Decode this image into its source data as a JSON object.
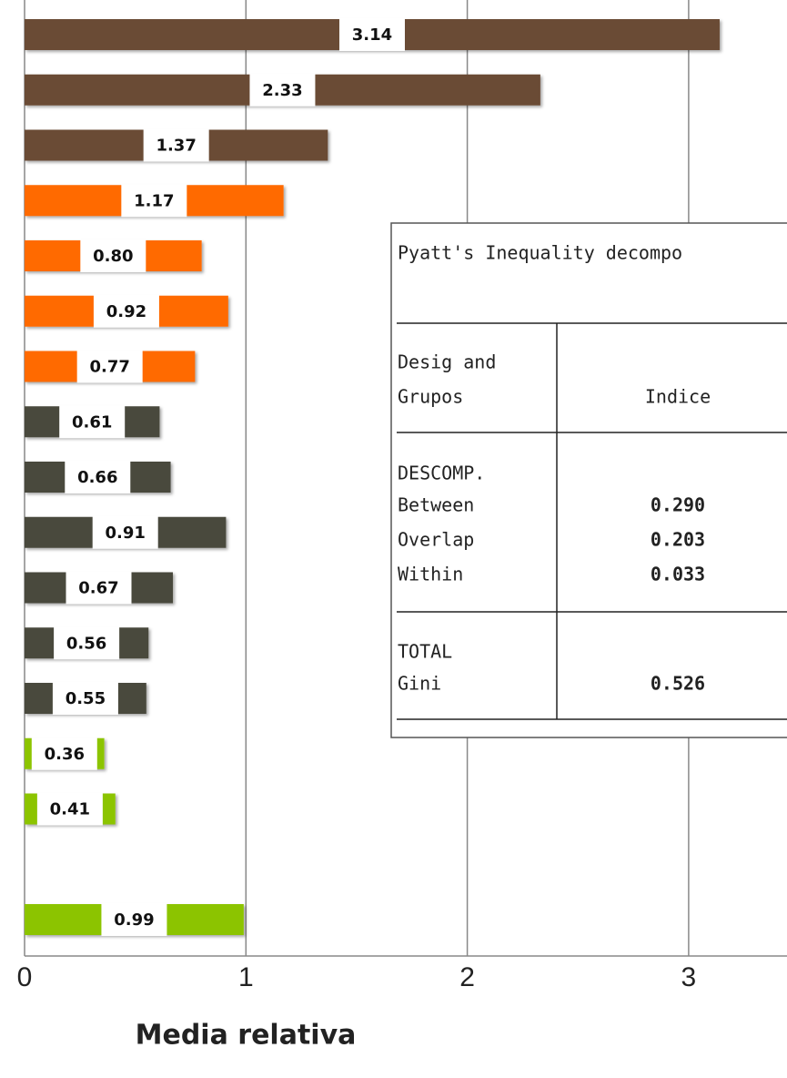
{
  "chart_data": {
    "type": "barh",
    "values": [
      3.14,
      2.33,
      1.37,
      1.17,
      0.8,
      0.92,
      0.77,
      0.61,
      0.66,
      0.91,
      0.67,
      0.56,
      0.55,
      0.36,
      0.41,
      null,
      0.99
    ],
    "value_labels": [
      "3.14",
      "2.33",
      "1.37",
      "1.17",
      "0.80",
      "0.92",
      "0.77",
      "0.61",
      "0.66",
      "0.91",
      "0.67",
      "0.56",
      "0.55",
      "0.36",
      "0.41",
      null,
      "0.99"
    ],
    "colors": [
      "#6b4c35",
      "#6b4c35",
      "#6b4c35",
      "#ff6a00",
      "#ff6a00",
      "#ff6a00",
      "#ff6a00",
      "#4a4a3c",
      "#4a4a3c",
      "#4a4a3c",
      "#4a4a3c",
      "#4a4a3c",
      "#4a4a3c",
      "#8cc400",
      "#8cc400",
      null,
      "#8cc400"
    ],
    "xlim": [
      0,
      3.45
    ],
    "xticks": [
      0,
      1,
      2,
      3
    ],
    "grid": true,
    "xlabel": "Media relativa"
  },
  "table": {
    "title": "Pyatt's Inequality decompo",
    "header": {
      "group": [
        "Desig and",
        "Grupos"
      ],
      "index": "Indice"
    },
    "sections": [
      {
        "heading": "DESCOMP.",
        "rows": [
          [
            "Between",
            "0.290"
          ],
          [
            "Overlap",
            "0.203"
          ],
          [
            "Within",
            "0.033"
          ]
        ]
      },
      {
        "heading": "TOTAL",
        "rows": [
          [
            "Gini",
            "0.526"
          ]
        ]
      }
    ]
  }
}
